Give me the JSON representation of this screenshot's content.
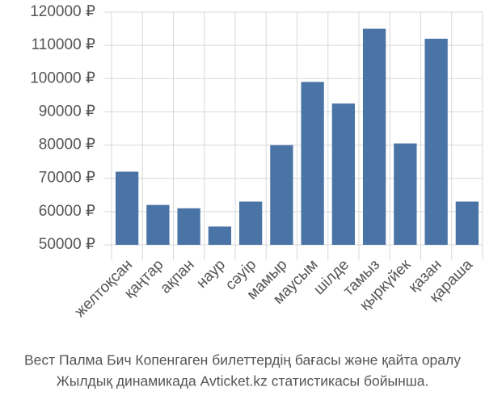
{
  "chart_data": {
    "type": "bar",
    "categories": [
      "желтоқсан",
      "қаңтар",
      "ақпан",
      "наур",
      "сәуір",
      "мамыр",
      "маусым",
      "шілде",
      "тамыз",
      "қыркүйек",
      "қазан",
      "қараша"
    ],
    "values": [
      72000,
      62000,
      61000,
      55500,
      63000,
      80000,
      99000,
      92500,
      115000,
      80500,
      112000,
      63000
    ],
    "color": "#4b74a6",
    "ylim": [
      50000,
      120000
    ],
    "yticks": [
      {
        "value": 50000,
        "label": "50000 ₽"
      },
      {
        "value": 60000,
        "label": "60000 ₽"
      },
      {
        "value": 70000,
        "label": "70000 ₽"
      },
      {
        "value": 80000,
        "label": "80000 ₽"
      },
      {
        "value": 90000,
        "label": "90000 ₽"
      },
      {
        "value": 100000,
        "label": "100000 ₽"
      },
      {
        "value": 110000,
        "label": "110000 ₽"
      },
      {
        "value": 120000,
        "label": "120000 ₽"
      }
    ],
    "grid": true,
    "caption": [
      "Вест Палма Бич Копенгаген билеттердің бағасы және қайта оралу",
      "Жылдық динамикада Avticket.kz статистикасы бойынша."
    ]
  }
}
